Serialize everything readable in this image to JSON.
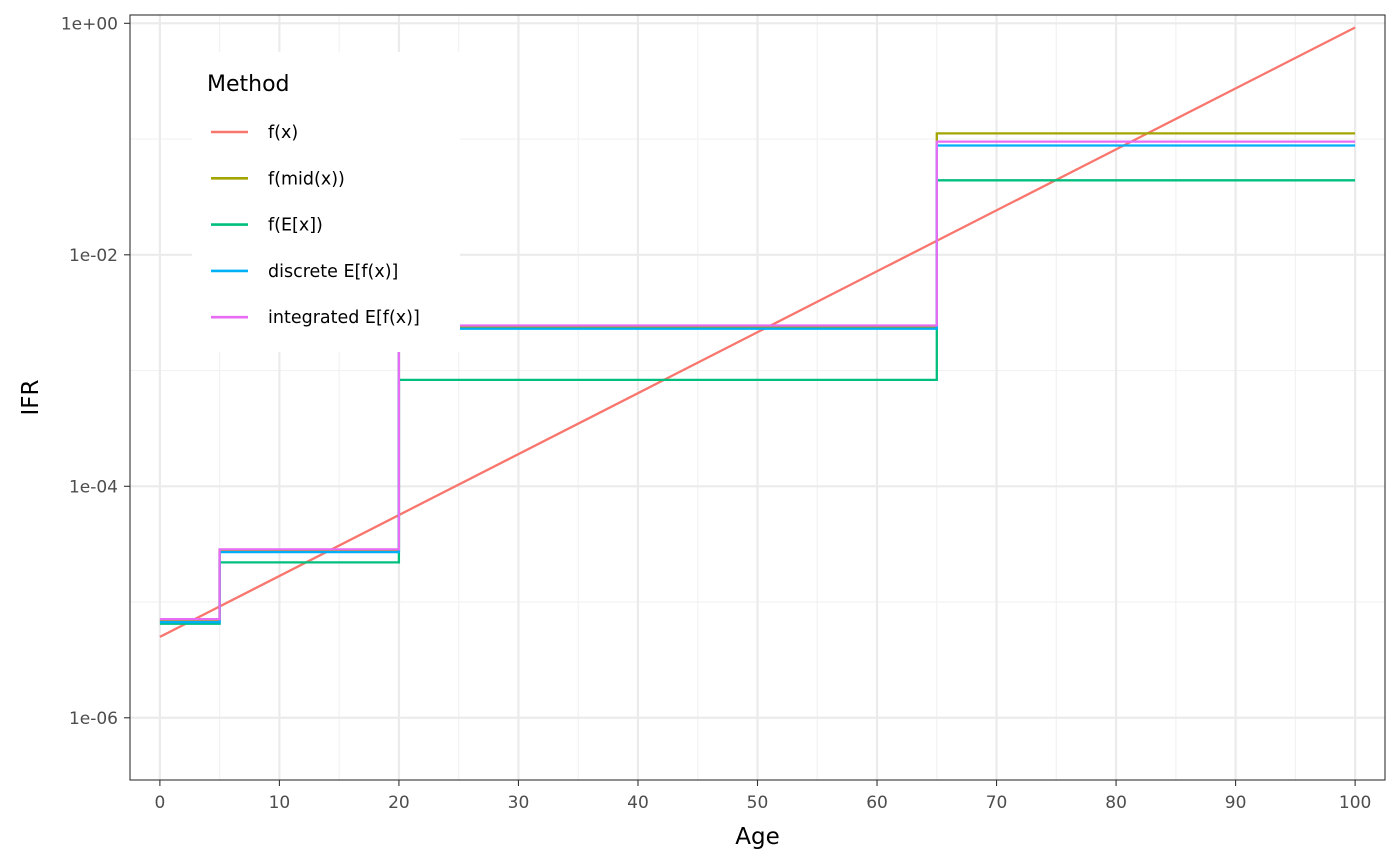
{
  "chart_data": {
    "type": "line",
    "step": true,
    "xlabel": "Age",
    "ylabel": "IFR",
    "xlim": [
      -2.5,
      102.5
    ],
    "x_ticks": [
      0,
      10,
      20,
      30,
      40,
      50,
      60,
      70,
      80,
      90,
      100
    ],
    "y_scale": "log10",
    "ylim": [
      2.9e-07,
      1.18
    ],
    "y_ticks": [
      1e-06,
      0.0001,
      0.01,
      1
    ],
    "y_tick_labels": [
      "1e-06",
      "1e-04",
      "1e-02",
      "1e+00"
    ],
    "grid": true,
    "legend": {
      "title": "Method",
      "position": "top-left"
    },
    "series": [
      {
        "name": "f(x)",
        "color": "#F8766D",
        "kind": "line",
        "x": [
          0,
          100
        ],
        "y": [
          5e-06,
          0.92
        ]
      },
      {
        "name": "f(mid(x))",
        "color": "#A3A500",
        "kind": "step",
        "breaks": [
          0,
          5,
          20,
          65,
          100
        ],
        "values": [
          7e-06,
          2.8e-05,
          0.0024,
          0.112
        ]
      },
      {
        "name": "f(E[x])",
        "color": "#00BF7D",
        "kind": "step",
        "breaks": [
          0,
          5,
          20,
          65,
          100
        ],
        "values": [
          6.5e-06,
          2.2e-05,
          0.00083,
          0.044
        ]
      },
      {
        "name": "discrete E[f(x)]",
        "color": "#00B0F6",
        "kind": "step",
        "breaks": [
          0,
          5,
          20,
          65,
          100
        ],
        "values": [
          6.7e-06,
          2.7e-05,
          0.0023,
          0.088
        ]
      },
      {
        "name": "integrated E[f(x)]",
        "color": "#E76BF3",
        "kind": "step",
        "breaks": [
          0,
          5,
          20,
          65,
          100
        ],
        "values": [
          7.1e-06,
          2.85e-05,
          0.00245,
          0.095
        ]
      }
    ]
  }
}
